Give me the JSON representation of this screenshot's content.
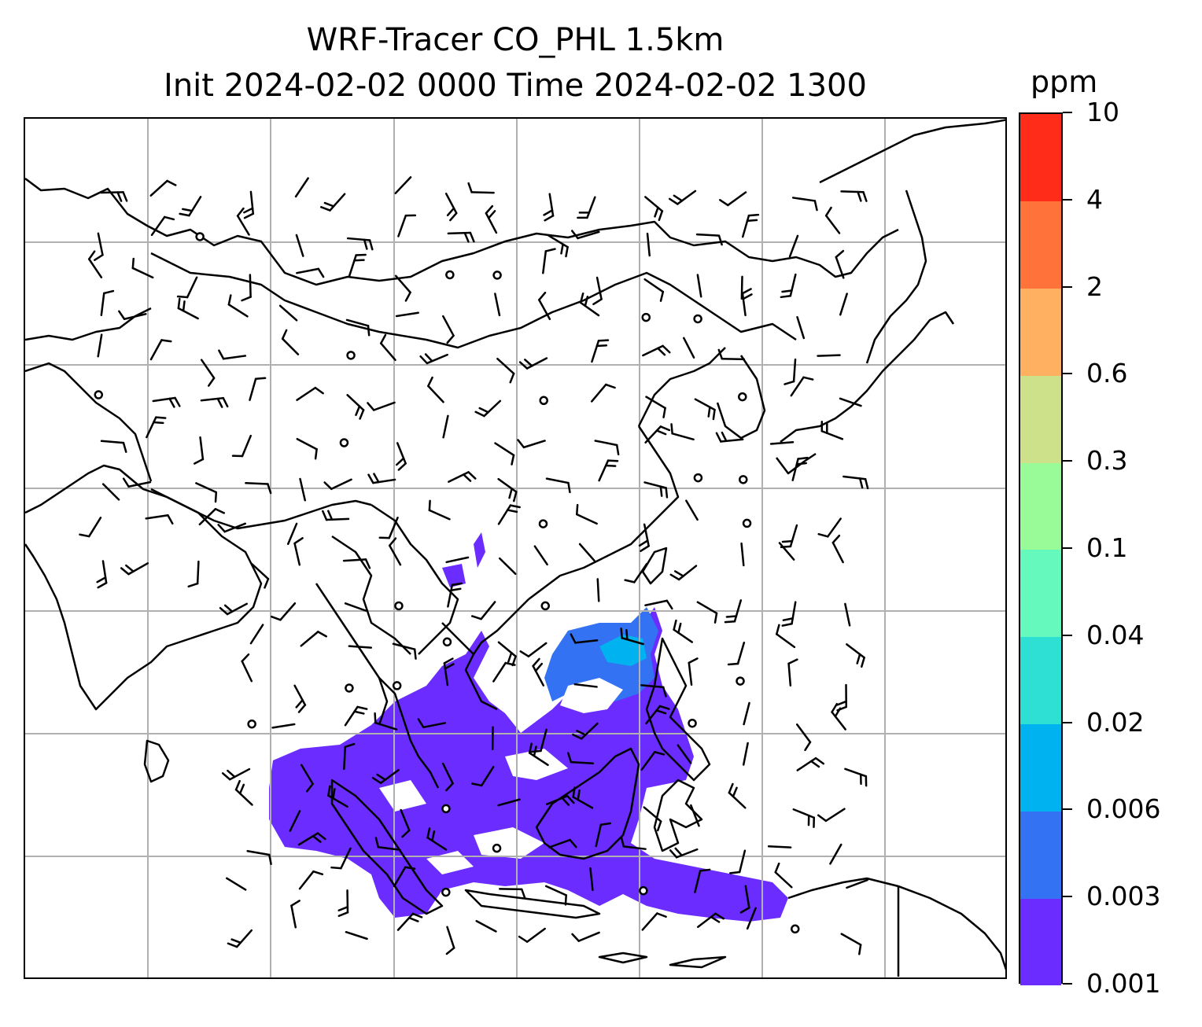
{
  "title": {
    "line1": "WRF-Tracer CO_PHL 1.5km",
    "line2": "Init 2024-02-02 0000 Time 2024-02-02 1300"
  },
  "colorbar": {
    "unit": "ppm",
    "levels": [
      "0.001",
      "0.003",
      "0.006",
      "0.02",
      "0.04",
      "0.1",
      "0.3",
      "0.6",
      "2",
      "4",
      "10"
    ],
    "colors": [
      "#6a2cff",
      "#3372f2",
      "#00b2ef",
      "#2ee0d3",
      "#66f9be",
      "#99fb98",
      "#cde18a",
      "#ffb060",
      "#ff7239",
      "#ff2c1a"
    ]
  },
  "map": {
    "coastline_color": "#000000",
    "grid_color": "#b0b0b0",
    "tracer_fill_color": "#6a2cff",
    "tracer_core_color": "#3372f2",
    "tracer_peak_color": "#00b2ef",
    "gridlines": true
  }
}
